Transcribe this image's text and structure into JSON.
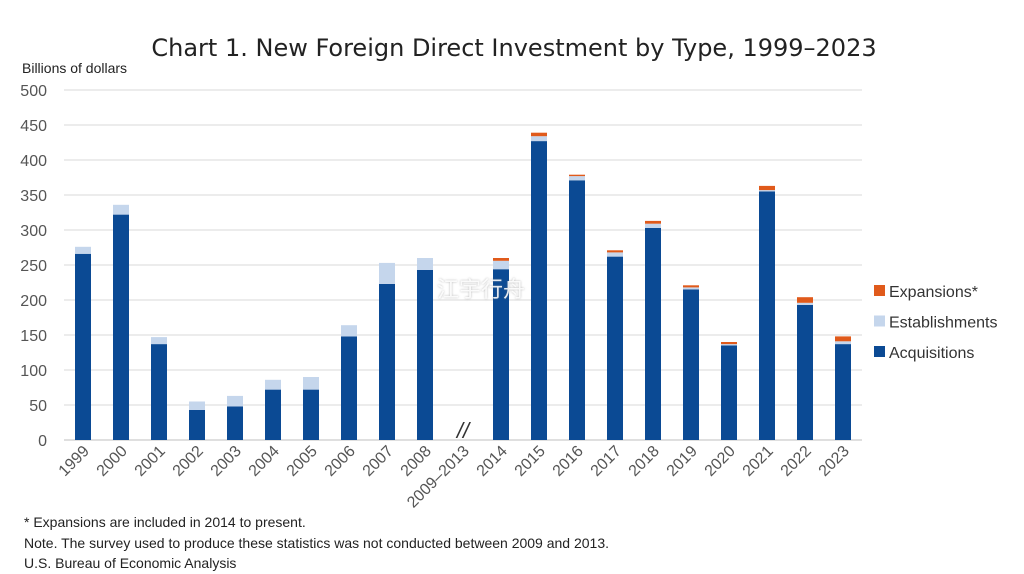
{
  "chart_data": {
    "type": "bar",
    "stacked": true,
    "title": "Chart 1. New Foreign Direct Investment by Type, 1999–2023",
    "ylabel": "Billions of dollars",
    "xlabel": "",
    "ylim": [
      0,
      500
    ],
    "yticks": [
      0,
      50,
      100,
      150,
      200,
      250,
      300,
      350,
      400,
      450,
      500
    ],
    "grid": true,
    "legend_position": "right",
    "axis_break_label": "//",
    "categories": [
      "1999",
      "2000",
      "2001",
      "2002",
      "2003",
      "2004",
      "2005",
      "2006",
      "2007",
      "2008",
      "2009–2013",
      "2014",
      "2015",
      "2016",
      "2017",
      "2018",
      "2019",
      "2020",
      "2021",
      "2022",
      "2023"
    ],
    "series": [
      {
        "name": "Acquisitions",
        "color": "#0b4a94",
        "values": [
          266,
          322,
          137,
          43,
          48,
          72,
          72,
          148,
          223,
          243,
          null,
          244,
          427,
          371,
          262,
          303,
          215,
          135,
          355,
          193,
          137
        ]
      },
      {
        "name": "Establishments",
        "color": "#c5d6ec",
        "values": [
          10,
          14,
          10,
          12,
          15,
          14,
          18,
          16,
          30,
          17,
          null,
          12,
          7,
          6,
          6,
          6,
          3,
          2,
          2,
          3,
          4
        ]
      },
      {
        "name": "Expansions*",
        "color": "#e05a1b",
        "values": [
          0,
          0,
          0,
          0,
          0,
          0,
          0,
          0,
          0,
          0,
          null,
          4,
          5,
          2,
          3,
          4,
          3,
          3,
          6,
          8,
          7
        ]
      }
    ]
  },
  "notes": {
    "expansions_note": "* Expansions are included in 2014 to present.",
    "survey_note": "Note. The survey used to produce these statistics was not conducted between 2009 and 2013.",
    "source": "U.S. Bureau of Economic Analysis"
  },
  "watermark": {
    "text": "江宇行舟"
  }
}
